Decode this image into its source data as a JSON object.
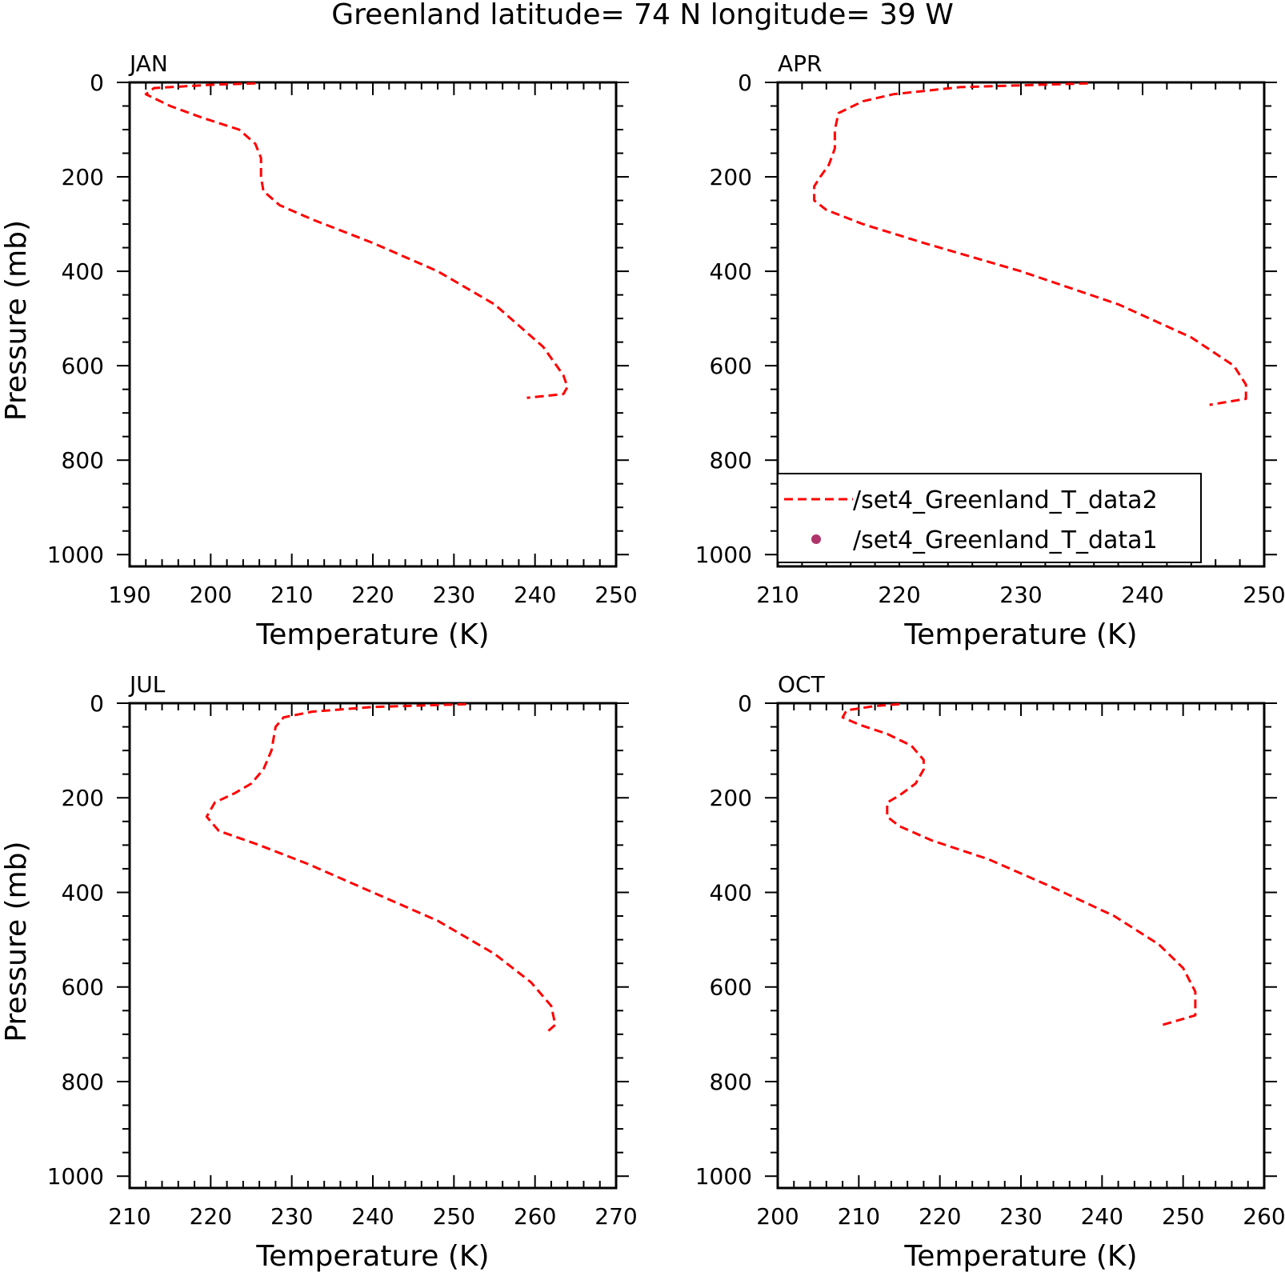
{
  "title": "Greenland  latitude= 74 N longitude= 39 W",
  "colors": {
    "model_line": "#ff0000",
    "obs_marker": "#b0336a",
    "axis": "#000000"
  },
  "legend": {
    "placement": "lower-left of APR panel",
    "entries": [
      {
        "label": "/set4_Greenland_T_data2",
        "style": "red-dashed-line"
      },
      {
        "label": "/set4_Greenland_T_data1",
        "style": "purple-dot"
      }
    ]
  },
  "chart_data": [
    {
      "type": "line",
      "panel_label": "JAN",
      "xlabel": "Temperature (K)",
      "ylabel": "Pressure (mb)",
      "xlim": [
        190,
        250
      ],
      "ylim": [
        1000,
        0
      ],
      "xticks": [
        190,
        200,
        210,
        220,
        230,
        240,
        250
      ],
      "yticks": [
        0,
        200,
        400,
        600,
        800,
        1000
      ],
      "series": [
        {
          "x": [
            205.5,
            200,
            193,
            192,
            195,
            199,
            203.5,
            205.5,
            206.2,
            206.2,
            206.5,
            208.5,
            212.5,
            220,
            228,
            235,
            241,
            243.5,
            244,
            243.5,
            239
          ],
          "y": [
            2,
            5,
            12,
            25,
            50,
            75,
            100,
            130,
            160,
            200,
            230,
            260,
            290,
            340,
            400,
            470,
            560,
            620,
            645,
            660,
            668
          ]
        }
      ]
    },
    {
      "type": "line",
      "panel_label": "APR",
      "xlabel": "Temperature (K)",
      "ylabel": "",
      "xlim": [
        210,
        250
      ],
      "ylim": [
        1000,
        0
      ],
      "xticks": [
        210,
        220,
        230,
        240,
        250
      ],
      "yticks": [
        0,
        200,
        400,
        600,
        800,
        1000
      ],
      "series": [
        {
          "x": [
            235.5,
            225,
            219.5,
            217,
            215,
            214.7,
            214.7,
            214.2,
            213.5,
            213,
            213,
            214,
            217,
            222,
            230,
            238,
            244,
            247.5,
            248.5,
            248.5,
            245.5
          ],
          "y": [
            2,
            10,
            25,
            40,
            65,
            100,
            140,
            175,
            200,
            220,
            250,
            270,
            300,
            340,
            400,
            470,
            540,
            600,
            640,
            670,
            683
          ]
        }
      ]
    },
    {
      "type": "line",
      "panel_label": "JUL",
      "xlabel": "Temperature (K)",
      "ylabel": "Pressure (mb)",
      "xlim": [
        210,
        270
      ],
      "ylim": [
        1000,
        0
      ],
      "xticks": [
        210,
        220,
        230,
        240,
        250,
        260,
        270
      ],
      "yticks": [
        0,
        200,
        400,
        600,
        800,
        1000
      ],
      "series": [
        {
          "x": [
            251.5,
            240,
            232.5,
            229,
            228,
            227.5,
            226.5,
            225,
            223,
            220.5,
            219.5,
            221,
            226,
            232,
            240,
            248,
            255,
            259.5,
            262,
            262.5,
            261.5
          ],
          "y": [
            2,
            8,
            18,
            30,
            50,
            100,
            140,
            170,
            190,
            210,
            240,
            270,
            300,
            340,
            400,
            460,
            530,
            590,
            640,
            680,
            695
          ]
        }
      ]
    },
    {
      "type": "line",
      "panel_label": "OCT",
      "xlabel": "Temperature (K)",
      "ylabel": "",
      "xlim": [
        200,
        260
      ],
      "ylim": [
        1000,
        0
      ],
      "xticks": [
        200,
        210,
        220,
        230,
        240,
        250,
        260
      ],
      "yticks": [
        0,
        200,
        400,
        600,
        800,
        1000
      ],
      "series": [
        {
          "x": [
            215,
            212,
            208.5,
            208,
            210,
            213.5,
            216.5,
            218,
            218,
            217,
            215,
            213.5,
            213.5,
            215,
            219,
            226,
            234,
            241.5,
            247,
            250,
            251.5,
            251.5,
            247.5
          ],
          "y": [
            2,
            6,
            15,
            30,
            45,
            65,
            90,
            120,
            140,
            170,
            195,
            210,
            240,
            260,
            290,
            330,
            390,
            450,
            510,
            560,
            610,
            660,
            680
          ]
        }
      ]
    }
  ]
}
